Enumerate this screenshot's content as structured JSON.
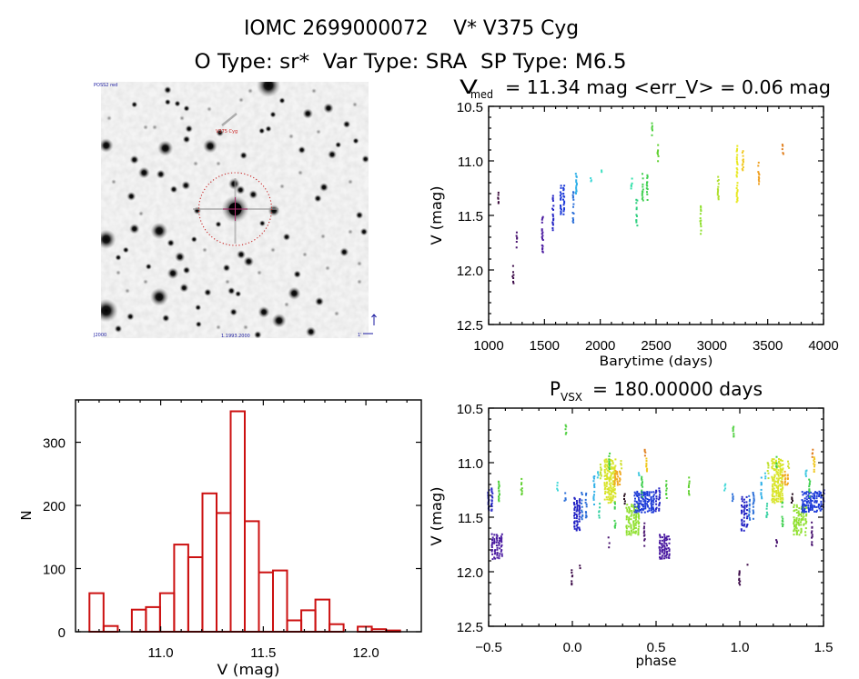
{
  "header": {
    "title": "IOMC 2699000072    V* V375 Cyg",
    "subtitle": "O Type: sr*  Var Type: SRA  SP Type: M6.5"
  },
  "image_panel": {
    "survey_label": "POSS2 red",
    "target_label": "V375 Cyg",
    "bottom_left_label": "J2000",
    "bottom_center_label": "1.1993.2000",
    "scale_label": "1'"
  },
  "chart_data": [
    {
      "id": "lightcurve",
      "type": "scatter",
      "title": {
        "symbol": "V",
        "subscript": "med",
        "text": "= 11.34 mag <err_V> = 0.06 mag"
      },
      "v_med_mag": 11.34,
      "mean_err_v_mag": 0.06,
      "xlabel": "Barytime (days)",
      "ylabel": "V (mag)",
      "xlim": [
        1000,
        4000
      ],
      "ylim": [
        10.5,
        12.5
      ],
      "y_inverted": true,
      "grid": false,
      "xticks": [
        1000,
        1500,
        2000,
        2500,
        3000,
        3500,
        4000
      ],
      "xtick_labels": [
        "1000",
        "1500",
        "2000",
        "2500",
        "3000",
        "3500",
        "4000"
      ],
      "x_minor_step": 100,
      "yticks": [
        10.5,
        11.0,
        11.5,
        12.0,
        12.5
      ],
      "ytick_labels": [
        "10.5",
        "11.0",
        "11.5",
        "12.0",
        "12.5"
      ],
      "y_minor_step": 0.1,
      "point_color_encoding": "rainbow by observation time",
      "series": [
        {
          "t_days": 1092,
          "span_days": 6,
          "v": [
            11.28,
            11.39
          ],
          "color": "#3a0a3a"
        },
        {
          "t_days": 1222,
          "span_days": 6,
          "v": [
            11.93,
            12.12
          ],
          "color": "#3c0a48"
        },
        {
          "t_days": 1255,
          "span_days": 6,
          "v": [
            11.66,
            11.79
          ],
          "color": "#4a1470"
        },
        {
          "t_days": 1488,
          "span_days": 10,
          "v": [
            11.51,
            11.87
          ],
          "color": "#4a1aa0"
        },
        {
          "t_days": 1580,
          "span_days": 8,
          "v": [
            11.31,
            11.63
          ],
          "color": "#2222c4"
        },
        {
          "t_days": 1660,
          "span_days": 25,
          "v": [
            11.23,
            11.49
          ],
          "color": "#1c3ad8"
        },
        {
          "t_days": 1768,
          "span_days": 20,
          "v": [
            11.27,
            11.57
          ],
          "color": "#2a6ed8"
        },
        {
          "t_days": 1790,
          "span_days": 10,
          "v": [
            11.12,
            11.33
          ],
          "color": "#30b0e8"
        },
        {
          "t_days": 1920,
          "span_days": 8,
          "v": [
            11.16,
            11.2
          ],
          "color": "#40d8d8"
        },
        {
          "t_days": 2015,
          "span_days": 8,
          "v": [
            11.07,
            11.13
          ],
          "color": "#40e0c0"
        },
        {
          "t_days": 2285,
          "span_days": 8,
          "v": [
            11.16,
            11.25
          ],
          "color": "#30e0a8"
        },
        {
          "t_days": 2335,
          "span_days": 15,
          "v": [
            11.34,
            11.61
          ],
          "color": "#30d080"
        },
        {
          "t_days": 2400,
          "span_days": 40,
          "v": [
            11.12,
            11.36
          ],
          "color": "#40d050"
        },
        {
          "t_days": 2470,
          "span_days": 6,
          "v": [
            10.64,
            10.78
          ],
          "color": "#50d040"
        },
        {
          "t_days": 2520,
          "span_days": 6,
          "v": [
            10.86,
            11.0
          ],
          "color": "#60d030"
        },
        {
          "t_days": 2905,
          "span_days": 12,
          "v": [
            11.4,
            11.67
          ],
          "color": "#90e030"
        },
        {
          "t_days": 3062,
          "span_days": 10,
          "v": [
            11.13,
            11.38
          ],
          "color": "#b0e030"
        },
        {
          "t_days": 3232,
          "span_days": 12,
          "v": [
            10.86,
            11.38
          ],
          "color": "#e8e820"
        },
        {
          "t_days": 3282,
          "span_days": 10,
          "v": [
            10.91,
            11.1
          ],
          "color": "#f0c820"
        },
        {
          "t_days": 3425,
          "span_days": 10,
          "v": [
            11.02,
            11.24
          ],
          "color": "#f0a020"
        },
        {
          "t_days": 3640,
          "span_days": 8,
          "v": [
            10.85,
            10.95
          ],
          "color": "#e08020"
        }
      ]
    },
    {
      "id": "phase_curve",
      "type": "scatter",
      "title": {
        "symbol": "P",
        "subscript": "VSX",
        "text": "= 180.00000 days"
      },
      "period_days": 180.0,
      "xlabel": "phase",
      "ylabel": "V (mag)",
      "xlim": [
        -0.5,
        1.5
      ],
      "ylim": [
        10.5,
        12.5
      ],
      "y_inverted": true,
      "grid": false,
      "xticks": [
        -0.5,
        0.0,
        0.5,
        1.0,
        1.5
      ],
      "xtick_labels": [
        "−0.5",
        "0.0",
        "0.5",
        "1.0",
        "1.5"
      ],
      "x_minor_step": 0.1,
      "yticks": [
        10.5,
        11.0,
        11.5,
        12.0,
        12.5
      ],
      "ytick_labels": [
        "10.5",
        "11.0",
        "11.5",
        "12.0",
        "12.5"
      ],
      "y_minor_step": 0.1,
      "phase_repeat_offsets": [
        -1,
        0,
        1
      ],
      "series": [
        {
          "phase": 0.003,
          "span": 0.01,
          "v": [
            11.99,
            12.12
          ],
          "color": "#3c0a48"
        },
        {
          "phase": 0.048,
          "span": 0.006,
          "v": [
            11.94,
            11.97
          ],
          "color": "#3c0a48"
        },
        {
          "phase": 0.028,
          "span": 0.03,
          "v": [
            11.32,
            11.62
          ],
          "color": "#2222c4"
        },
        {
          "phase": 0.07,
          "span": 0.025,
          "v": [
            11.28,
            11.52
          ],
          "color": "#2a6ed8"
        },
        {
          "phase": 0.135,
          "span": 0.01,
          "v": [
            11.12,
            11.38
          ],
          "color": "#30b0e8"
        },
        {
          "phase": 0.16,
          "span": 0.012,
          "v": [
            11.07,
            11.14
          ],
          "color": "#40c8e0"
        },
        {
          "phase": 0.168,
          "span": 0.012,
          "v": [
            11.38,
            11.5
          ],
          "color": "#30d0a0"
        },
        {
          "phase": 0.175,
          "span": 0.01,
          "v": [
            11.0,
            11.14
          ],
          "color": "#c0e030"
        },
        {
          "phase": 0.225,
          "span": 0.06,
          "v": [
            10.97,
            11.37
          ],
          "color": "#d8e428"
        },
        {
          "phase": 0.223,
          "span": 0.006,
          "v": [
            10.87,
            11.06
          ],
          "color": "#40d040"
        },
        {
          "phase": 0.27,
          "span": 0.03,
          "v": [
            11.08,
            11.2
          ],
          "color": "#f0a820"
        },
        {
          "phase": 0.222,
          "span": 0.006,
          "v": [
            11.67,
            11.78
          ],
          "color": "#4a1470"
        },
        {
          "phase": 0.258,
          "span": 0.006,
          "v": [
            11.36,
            11.42
          ],
          "color": "#40d050"
        },
        {
          "phase": 0.258,
          "span": 0.006,
          "v": [
            11.5,
            11.6
          ],
          "color": "#40d050"
        },
        {
          "phase": 0.295,
          "span": 0.008,
          "v": [
            10.98,
            11.05
          ],
          "color": "#d0e030"
        },
        {
          "phase": 0.315,
          "span": 0.006,
          "v": [
            11.29,
            11.38
          ],
          "color": "#200818"
        },
        {
          "phase": 0.36,
          "span": 0.07,
          "v": [
            11.39,
            11.66
          ],
          "color": "#90e030"
        },
        {
          "phase": 0.43,
          "span": 0.11,
          "v": [
            11.27,
            11.45
          ],
          "color": "#1c3ad8"
        },
        {
          "phase": 0.4,
          "span": 0.006,
          "v": [
            11.07,
            11.12
          ],
          "color": "#40c8e0"
        },
        {
          "phase": 0.42,
          "span": 0.006,
          "v": [
            11.13,
            11.31
          ],
          "color": "#40d050"
        },
        {
          "phase": 0.435,
          "span": 0.008,
          "v": [
            11.53,
            11.76
          ],
          "color": "#4a1470"
        },
        {
          "phase": 0.44,
          "span": 0.012,
          "v": [
            10.87,
            10.95
          ],
          "color": "#e08020"
        },
        {
          "phase": 0.448,
          "span": 0.008,
          "v": [
            10.95,
            11.08
          ],
          "color": "#f0c820"
        },
        {
          "phase": 0.51,
          "span": 0.02,
          "v": [
            11.24,
            11.44
          ],
          "color": "#2222c4"
        },
        {
          "phase": 0.55,
          "span": 0.055,
          "v": [
            11.66,
            11.88
          ],
          "color": "#4a1aa0"
        },
        {
          "phase": 0.565,
          "span": 0.006,
          "v": [
            11.17,
            11.35
          ],
          "color": "#50d040"
        },
        {
          "phase": 0.7,
          "span": 0.006,
          "v": [
            11.14,
            11.29
          ],
          "color": "#60d030"
        },
        {
          "phase": 0.915,
          "span": 0.008,
          "v": [
            11.17,
            11.25
          ],
          "color": "#40d8d8"
        },
        {
          "phase": 0.96,
          "span": 0.006,
          "v": [
            11.28,
            11.35
          ],
          "color": "#2a6ed8"
        },
        {
          "phase": 0.964,
          "span": 0.006,
          "v": [
            10.64,
            10.78
          ],
          "color": "#50d040"
        }
      ]
    },
    {
      "id": "histogram",
      "type": "bar",
      "xlabel": "V (mag)",
      "ylabel": "N",
      "xlim": [
        10.585,
        12.27
      ],
      "ylim": [
        0,
        367
      ],
      "y_inverted": false,
      "grid": false,
      "xticks": [
        11.0,
        11.5,
        12.0
      ],
      "xtick_labels": [
        "11.0",
        "11.5",
        "12.0"
      ],
      "x_minor_step": 0.1,
      "yticks": [
        0,
        100,
        200,
        300
      ],
      "ytick_labels": [
        "0",
        "100",
        "200",
        "300"
      ],
      "y_minor_step": null,
      "bin_start": 10.653,
      "bin_width": 0.0688,
      "counts": [
        61,
        9,
        0,
        35,
        39,
        61,
        138,
        118,
        219,
        188,
        349,
        175,
        94,
        97,
        18,
        34,
        51,
        12,
        0,
        8,
        4,
        2
      ],
      "bar_color": "#cc1111"
    }
  ]
}
